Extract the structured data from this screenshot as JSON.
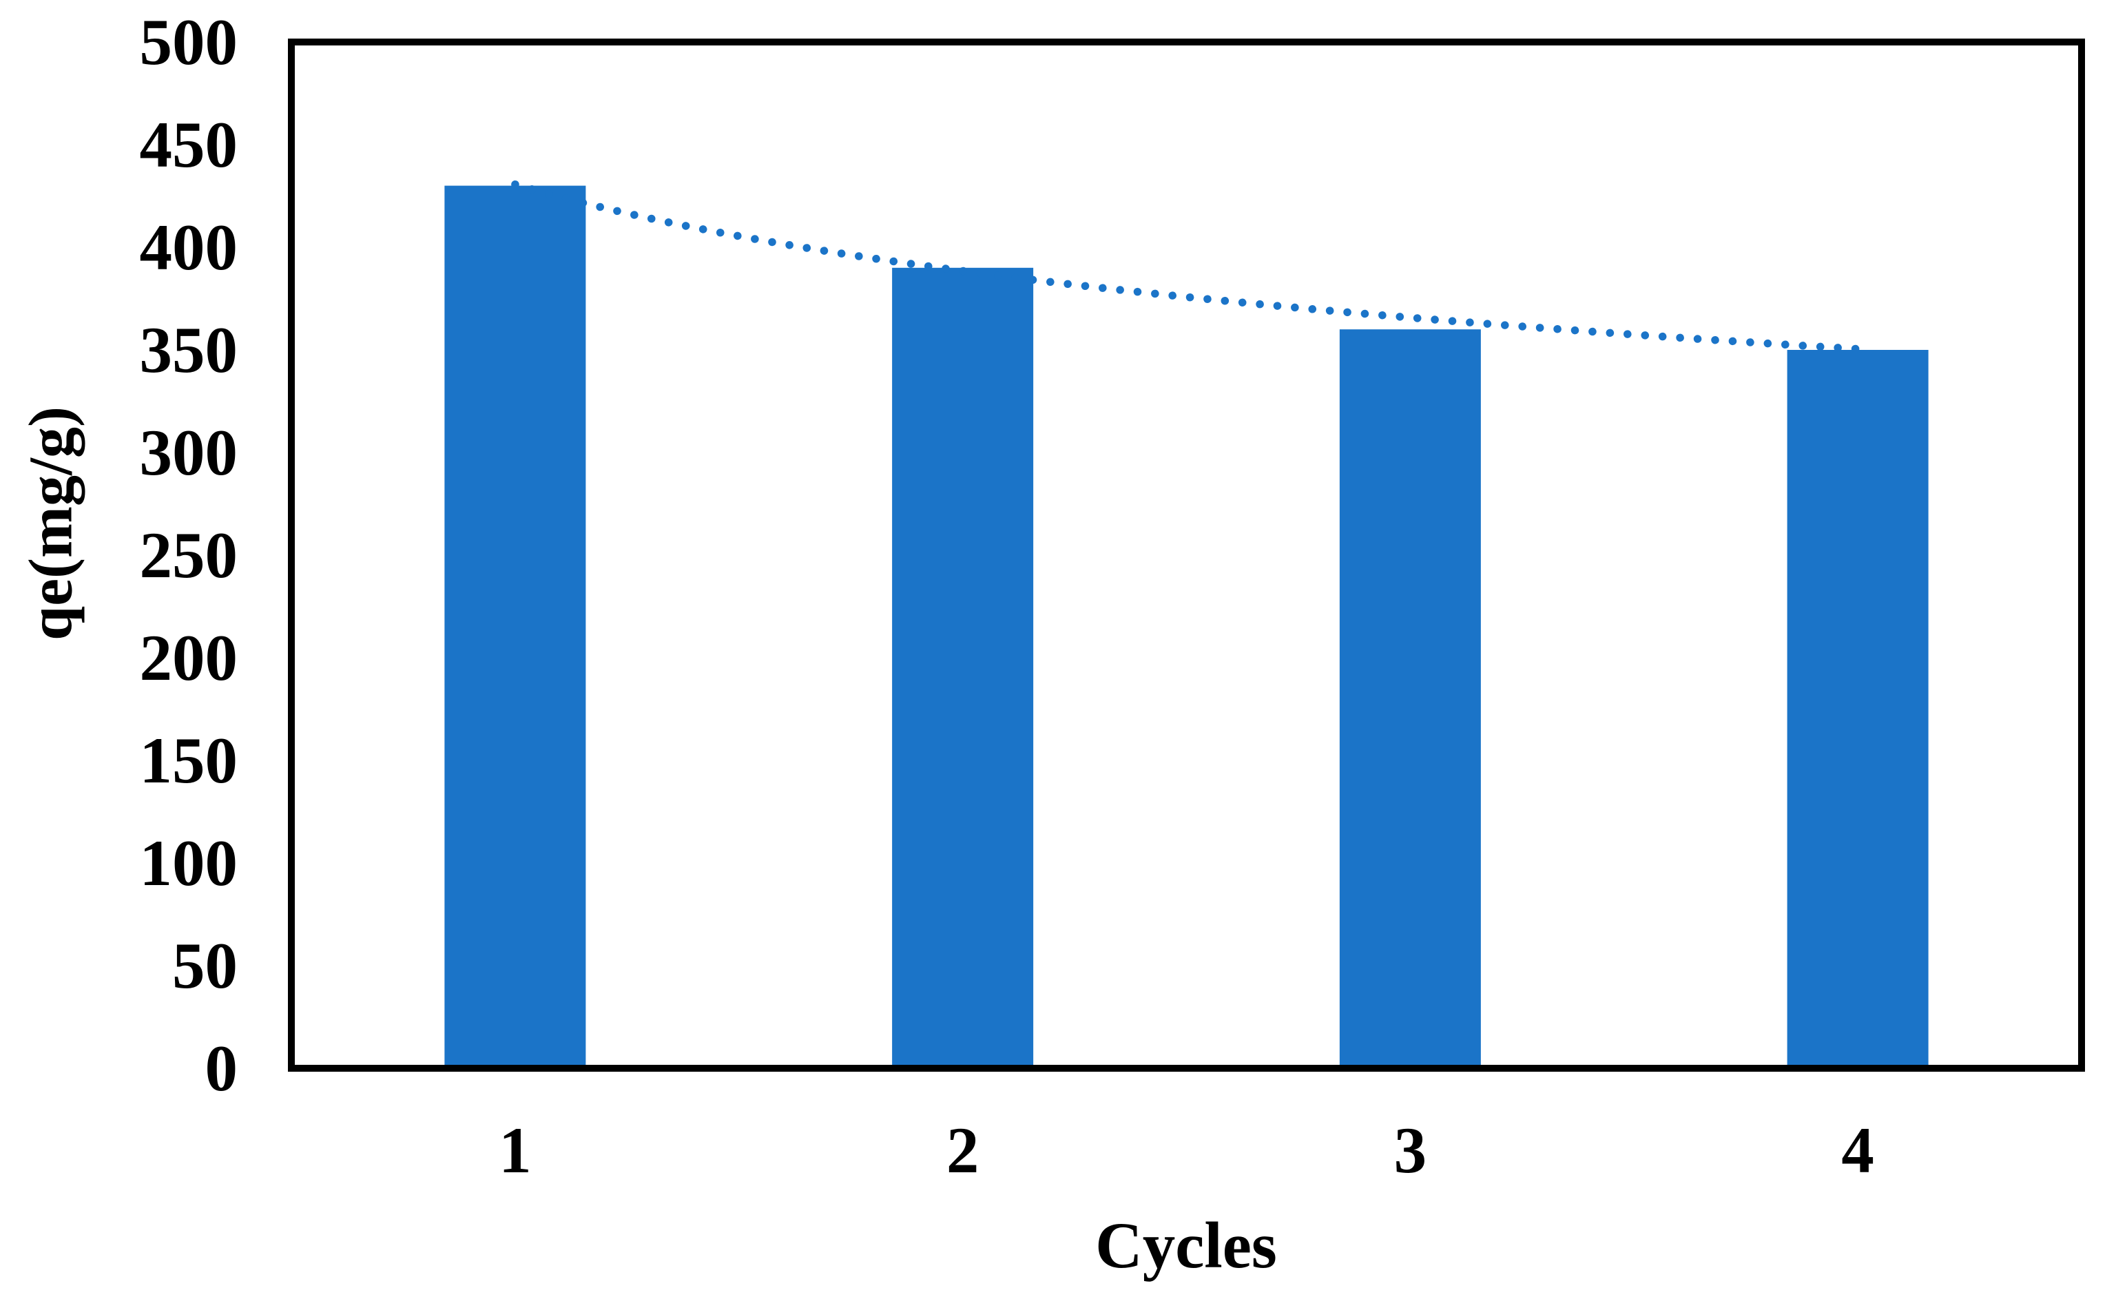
{
  "figure": {
    "background": "#FFFFFF",
    "frame_color": "#000000",
    "text_color": "#000000"
  },
  "chart_data": {
    "type": "bar",
    "title": "",
    "xlabel": "Cycles",
    "ylabel": "qe(mg/g)",
    "categories": [
      "1",
      "2",
      "3",
      "4"
    ],
    "values": [
      430,
      390,
      360,
      350
    ],
    "ylim": [
      0,
      500
    ],
    "ytick_step": 50,
    "ytick_labels": [
      "0",
      "50",
      "100",
      "150",
      "200",
      "250",
      "300",
      "350",
      "400",
      "450",
      "500"
    ],
    "grid": false,
    "legend_position": "none",
    "bar_color": "#1B74C8",
    "trendline": {
      "type": "power",
      "coef_a": 430.6,
      "exp_b": -0.1486,
      "style": "dotted",
      "color": "#1B74C8",
      "x_start": 1,
      "x_end": 4
    }
  }
}
